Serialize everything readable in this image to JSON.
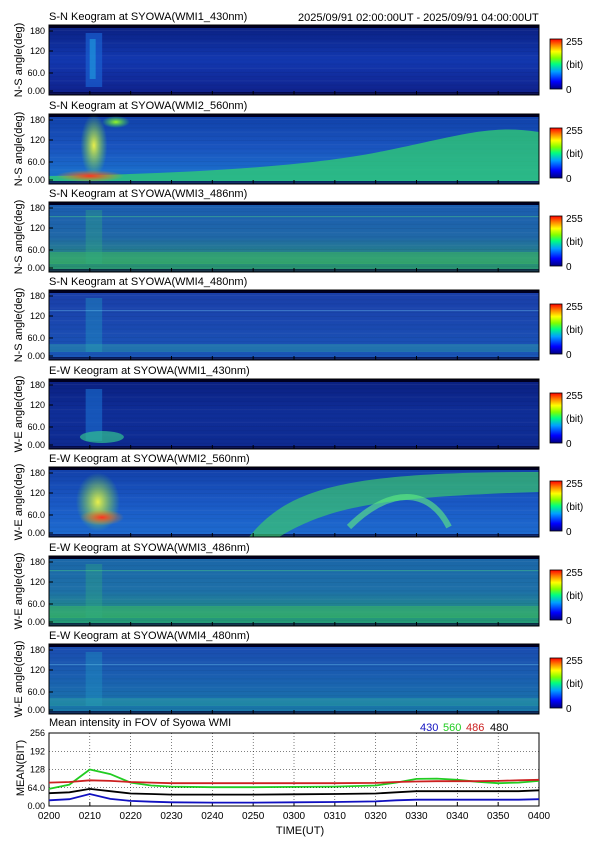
{
  "header": {
    "date_range": "2025/09/91 02:00:00UT - 2025/09/91 04:00:00UT"
  },
  "colorbar": {
    "max_label": "255",
    "unit_label": "(bit)",
    "min_label": "0"
  },
  "keograms": [
    {
      "title": "S-N Keogram at SYOWA(WMI1_430nm)",
      "ylabel": "N-S angle(deg)",
      "yticks": [
        "180",
        "120",
        "60.0",
        "0.00"
      ],
      "style": "sn430"
    },
    {
      "title": "S-N Keogram at SYOWA(WMI2_560nm)",
      "ylabel": "N-S angle(deg)",
      "yticks": [
        "180",
        "120",
        "60.0",
        "0.00"
      ],
      "style": "sn560"
    },
    {
      "title": "S-N Keogram at SYOWA(WMI3_486nm)",
      "ylabel": "N-S angle(deg)",
      "yticks": [
        "180",
        "120",
        "60.0",
        "0.00"
      ],
      "style": "sn486"
    },
    {
      "title": "S-N Keogram at SYOWA(WMI4_480nm)",
      "ylabel": "N-S angle(deg)",
      "yticks": [
        "180",
        "120",
        "60.0",
        "0.00"
      ],
      "style": "sn480"
    },
    {
      "title": "E-W Keogram at SYOWA(WMI1_430nm)",
      "ylabel": "W-E angle(deg)",
      "yticks": [
        "180",
        "120",
        "60.0",
        "0.00"
      ],
      "style": "ew430"
    },
    {
      "title": "E-W Keogram at SYOWA(WMI2_560nm)",
      "ylabel": "W-E angle(deg)",
      "yticks": [
        "180",
        "120",
        "60.0",
        "0.00"
      ],
      "style": "ew560"
    },
    {
      "title": "E-W Keogram at SYOWA(WMI3_486nm)",
      "ylabel": "W-E angle(deg)",
      "yticks": [
        "180",
        "120",
        "60.0",
        "0.00"
      ],
      "style": "ew486"
    },
    {
      "title": "E-W Keogram at SYOWA(WMI4_480nm)",
      "ylabel": "W-E angle(deg)",
      "yticks": [
        "180",
        "120",
        "60.0",
        "0.00"
      ],
      "style": "ew480"
    }
  ],
  "chart_data": {
    "type": "line",
    "title": "Mean intensity in FOV of Syowa WMI",
    "xlabel": "TIME(UT)",
    "ylabel": "MEAN(BIT)",
    "ylim": [
      0,
      256
    ],
    "xlim": [
      0,
      120
    ],
    "xtick_labels": [
      "0200",
      "0210",
      "0220",
      "0230",
      "0240",
      "0250",
      "0300",
      "0310",
      "0320",
      "0330",
      "0340",
      "0350",
      "0400"
    ],
    "ytick_labels": [
      "256",
      "192",
      "128",
      "64.0",
      "0.00"
    ],
    "ytick_values": [
      256,
      192,
      128,
      64,
      0
    ],
    "x": [
      0,
      5,
      10,
      15,
      20,
      25,
      30,
      40,
      50,
      60,
      70,
      80,
      85,
      90,
      95,
      100,
      105,
      110,
      115,
      120
    ],
    "series": [
      {
        "name": "430",
        "color": "#1010c0",
        "values": [
          20,
          24,
          42,
          25,
          18,
          15,
          13,
          12,
          12,
          13,
          14,
          16,
          20,
          22,
          22,
          22,
          22,
          22,
          22,
          24
        ]
      },
      {
        "name": "560",
        "color": "#22cc22",
        "values": [
          60,
          75,
          128,
          112,
          82,
          72,
          68,
          66,
          66,
          67,
          68,
          72,
          82,
          95,
          96,
          92,
          85,
          80,
          82,
          88
        ]
      },
      {
        "name": "486",
        "color": "#cc2020",
        "values": [
          82,
          84,
          90,
          88,
          84,
          82,
          80,
          80,
          80,
          80,
          80,
          81,
          84,
          86,
          87,
          87,
          87,
          88,
          90,
          92
        ]
      },
      {
        "name": "480",
        "color": "#000000",
        "values": [
          45,
          48,
          60,
          52,
          44,
          42,
          40,
          40,
          40,
          41,
          42,
          44,
          48,
          52,
          52,
          52,
          52,
          52,
          52,
          55
        ]
      }
    ]
  }
}
